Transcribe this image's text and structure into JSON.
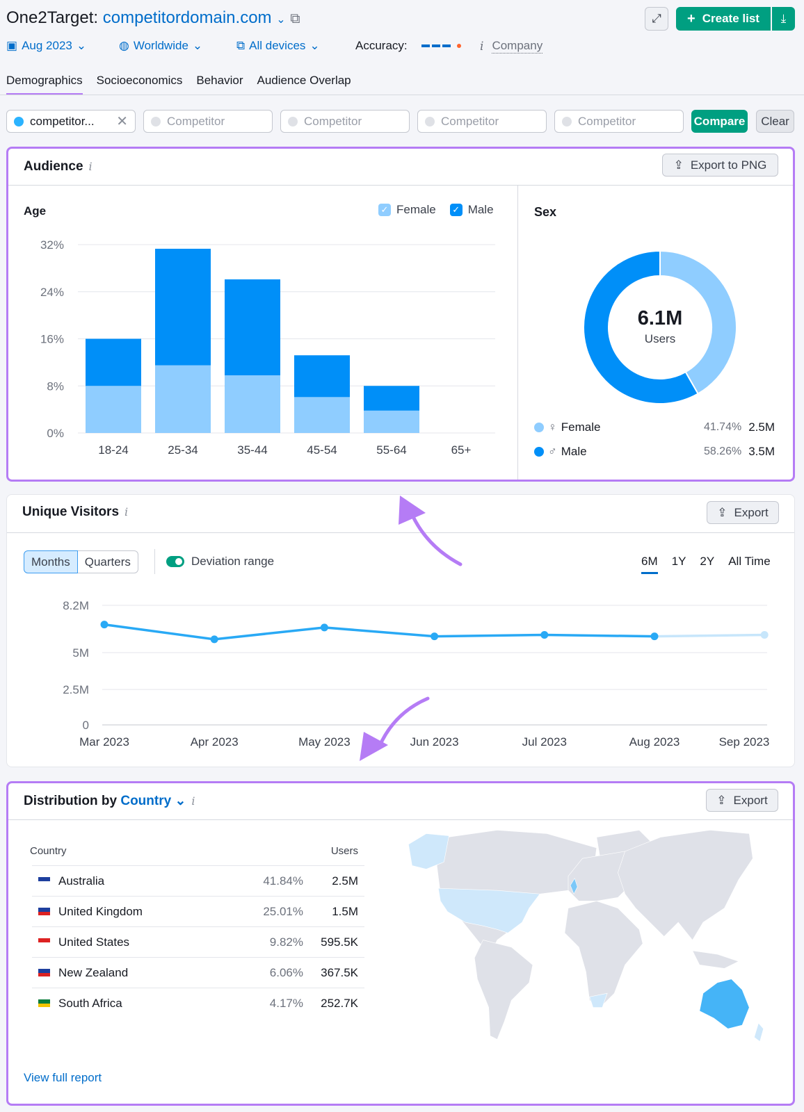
{
  "header": {
    "title_prefix": "One2Target:",
    "domain": "competitordomain.com",
    "create_list": "Create list"
  },
  "filters": {
    "date": "Aug 2023",
    "region": "Worldwide",
    "devices": "All devices",
    "accuracy_label": "Accuracy:",
    "company": "Company"
  },
  "tabs": [
    {
      "label": "Demographics",
      "active": true
    },
    {
      "label": "Socioeconomics"
    },
    {
      "label": "Behavior"
    },
    {
      "label": "Audience Overlap"
    }
  ],
  "competitors": {
    "first": "competitor...",
    "placeholder": "Competitor",
    "compare": "Compare",
    "clear": "Clear"
  },
  "audience": {
    "title": "Audience",
    "export": "Export to PNG",
    "age_title": "Age",
    "legend_female": "Female",
    "legend_male": "Male",
    "sex_title": "Sex",
    "total": "6.1M",
    "total_label": "Users",
    "sex_rows": [
      {
        "label": "Female",
        "pct": "41.74%",
        "value": "2.5M"
      },
      {
        "label": "Male",
        "pct": "58.26%",
        "value": "3.5M"
      }
    ]
  },
  "visitors": {
    "title": "Unique Visitors",
    "export": "Export",
    "months": "Months",
    "quarters": "Quarters",
    "deviation": "Deviation range",
    "ranges": [
      "6M",
      "1Y",
      "2Y",
      "All Time"
    ],
    "active_range": "6M"
  },
  "distribution": {
    "title": "Distribution by",
    "dimension": "Country",
    "export": "Export",
    "col_country": "Country",
    "col_users": "Users",
    "rows": [
      {
        "country": "Australia",
        "pct": "41.84%",
        "users": "2.5M"
      },
      {
        "country": "United Kingdom",
        "pct": "25.01%",
        "users": "1.5M"
      },
      {
        "country": "United States",
        "pct": "9.82%",
        "users": "595.5K"
      },
      {
        "country": "New Zealand",
        "pct": "6.06%",
        "users": "367.5K"
      },
      {
        "country": "South Africa",
        "pct": "4.17%",
        "users": "252.7K"
      }
    ],
    "view_full": "View full report"
  },
  "colors": {
    "accent": "#006dca",
    "green": "#009f81",
    "male": "#008ff8",
    "female": "#8fcdff",
    "highlight": "#b57cf5",
    "line": "#29a9f5"
  },
  "chart_data": [
    {
      "type": "bar",
      "stacked": true,
      "title": "Age",
      "categories": [
        "18-24",
        "25-34",
        "35-44",
        "45-54",
        "55-64",
        "65+"
      ],
      "series": [
        {
          "name": "Female",
          "values": [
            8,
            11.5,
            9.8,
            6.1,
            3.8,
            0
          ]
        },
        {
          "name": "Male",
          "values": [
            8,
            19.8,
            16.3,
            7.1,
            4.2,
            0
          ]
        }
      ],
      "yticks": [
        "0%",
        "8%",
        "16%",
        "24%",
        "32%"
      ],
      "ylim": [
        0,
        32
      ],
      "grid": true,
      "legend": "top-right"
    },
    {
      "type": "pie",
      "donut": true,
      "title": "Sex",
      "categories": [
        "Female",
        "Male"
      ],
      "values": [
        41.74,
        58.26
      ]
    },
    {
      "type": "line",
      "x": [
        "Mar 2023",
        "Apr 2023",
        "May 2023",
        "Jun 2023",
        "Jul 2023",
        "Aug 2023",
        "Sep 2023"
      ],
      "values": [
        6.9,
        5.9,
        6.7,
        6.1,
        6.2,
        6.1,
        6.2
      ],
      "projected_from_index": 5,
      "yticks": [
        "0",
        "2.5M",
        "5M",
        "8.2M"
      ],
      "ytick_values": [
        0,
        2.5,
        5,
        8.2
      ],
      "grid": true
    }
  ]
}
